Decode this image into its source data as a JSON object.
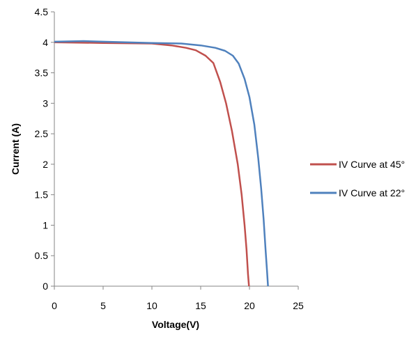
{
  "chart_data": {
    "type": "line",
    "title": "",
    "xlabel": "Voltage(V)",
    "ylabel": "Current (A)",
    "xlim": [
      0,
      25
    ],
    "ylim": [
      0,
      4.5
    ],
    "x_ticks": [
      "0",
      "5",
      "10",
      "15",
      "20",
      "25"
    ],
    "y_ticks": [
      "0",
      "0.5",
      "1",
      "1.5",
      "2",
      "2.5",
      "3",
      "3.5",
      "4",
      "4.5"
    ],
    "x_tick_values": [
      0,
      5,
      10,
      15,
      20,
      25
    ],
    "y_tick_values": [
      0,
      0.5,
      1,
      1.5,
      2,
      2.5,
      3,
      3.5,
      4,
      4.5
    ],
    "grid": false,
    "legend_position": "right",
    "series": [
      {
        "name": "IV Curve at 45°",
        "color": "#C0504D",
        "points": [
          [
            0,
            4.0
          ],
          [
            5,
            3.99
          ],
          [
            10,
            3.98
          ],
          [
            12,
            3.95
          ],
          [
            13.5,
            3.91
          ],
          [
            14.5,
            3.87
          ],
          [
            15.5,
            3.78
          ],
          [
            16.3,
            3.66
          ],
          [
            17,
            3.35
          ],
          [
            17.6,
            3.0
          ],
          [
            18.2,
            2.55
          ],
          [
            18.8,
            2.0
          ],
          [
            19.2,
            1.5
          ],
          [
            19.5,
            1.0
          ],
          [
            19.7,
            0.6
          ],
          [
            19.85,
            0.2
          ],
          [
            19.95,
            0
          ]
        ]
      },
      {
        "name": "IV Curve at 22°",
        "color": "#4F81BD",
        "points": [
          [
            0,
            4.01
          ],
          [
            3,
            4.02
          ],
          [
            5,
            4.01
          ],
          [
            10,
            3.99
          ],
          [
            13,
            3.98
          ],
          [
            15,
            3.95
          ],
          [
            16.5,
            3.91
          ],
          [
            17.5,
            3.86
          ],
          [
            18.3,
            3.78
          ],
          [
            18.9,
            3.65
          ],
          [
            19.5,
            3.4
          ],
          [
            20,
            3.1
          ],
          [
            20.5,
            2.65
          ],
          [
            20.9,
            2.1
          ],
          [
            21.2,
            1.6
          ],
          [
            21.45,
            1.1
          ],
          [
            21.65,
            0.6
          ],
          [
            21.8,
            0.25
          ],
          [
            21.9,
            0
          ]
        ]
      }
    ]
  }
}
